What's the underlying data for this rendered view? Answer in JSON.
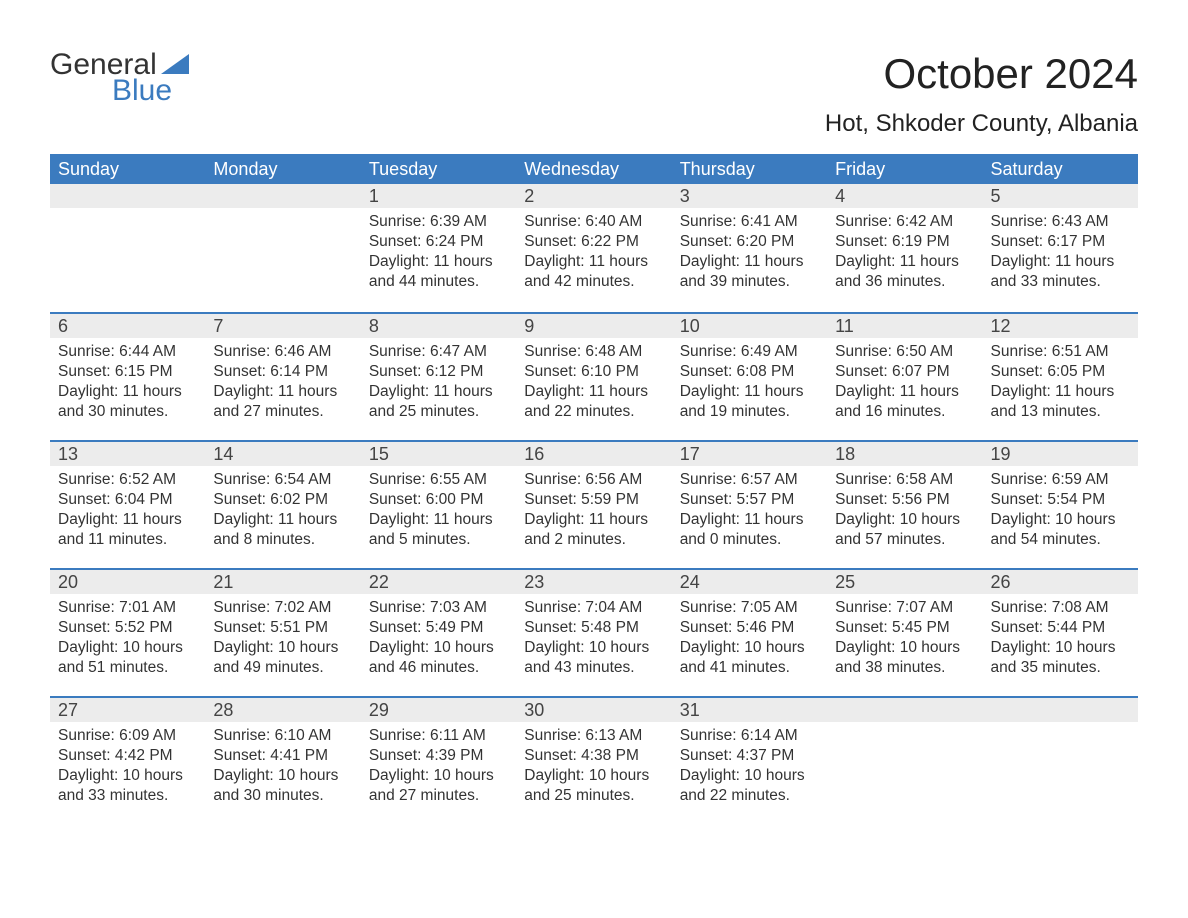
{
  "logo": {
    "word1": "General",
    "word2": "Blue",
    "flag_color": "#3b7bbf"
  },
  "title": "October 2024",
  "location": "Hot, Shkoder County, Albania",
  "colors": {
    "header_bg": "#3b7bbf",
    "header_text": "#ffffff",
    "daynum_bg": "#ececec",
    "row_border": "#3b7bbf",
    "text": "#333333"
  },
  "day_headers": [
    "Sunday",
    "Monday",
    "Tuesday",
    "Wednesday",
    "Thursday",
    "Friday",
    "Saturday"
  ],
  "weeks": [
    [
      null,
      null,
      {
        "n": "1",
        "sunrise": "Sunrise: 6:39 AM",
        "sunset": "Sunset: 6:24 PM",
        "day1": "Daylight: 11 hours",
        "day2": "and 44 minutes."
      },
      {
        "n": "2",
        "sunrise": "Sunrise: 6:40 AM",
        "sunset": "Sunset: 6:22 PM",
        "day1": "Daylight: 11 hours",
        "day2": "and 42 minutes."
      },
      {
        "n": "3",
        "sunrise": "Sunrise: 6:41 AM",
        "sunset": "Sunset: 6:20 PM",
        "day1": "Daylight: 11 hours",
        "day2": "and 39 minutes."
      },
      {
        "n": "4",
        "sunrise": "Sunrise: 6:42 AM",
        "sunset": "Sunset: 6:19 PM",
        "day1": "Daylight: 11 hours",
        "day2": "and 36 minutes."
      },
      {
        "n": "5",
        "sunrise": "Sunrise: 6:43 AM",
        "sunset": "Sunset: 6:17 PM",
        "day1": "Daylight: 11 hours",
        "day2": "and 33 minutes."
      }
    ],
    [
      {
        "n": "6",
        "sunrise": "Sunrise: 6:44 AM",
        "sunset": "Sunset: 6:15 PM",
        "day1": "Daylight: 11 hours",
        "day2": "and 30 minutes."
      },
      {
        "n": "7",
        "sunrise": "Sunrise: 6:46 AM",
        "sunset": "Sunset: 6:14 PM",
        "day1": "Daylight: 11 hours",
        "day2": "and 27 minutes."
      },
      {
        "n": "8",
        "sunrise": "Sunrise: 6:47 AM",
        "sunset": "Sunset: 6:12 PM",
        "day1": "Daylight: 11 hours",
        "day2": "and 25 minutes."
      },
      {
        "n": "9",
        "sunrise": "Sunrise: 6:48 AM",
        "sunset": "Sunset: 6:10 PM",
        "day1": "Daylight: 11 hours",
        "day2": "and 22 minutes."
      },
      {
        "n": "10",
        "sunrise": "Sunrise: 6:49 AM",
        "sunset": "Sunset: 6:08 PM",
        "day1": "Daylight: 11 hours",
        "day2": "and 19 minutes."
      },
      {
        "n": "11",
        "sunrise": "Sunrise: 6:50 AM",
        "sunset": "Sunset: 6:07 PM",
        "day1": "Daylight: 11 hours",
        "day2": "and 16 minutes."
      },
      {
        "n": "12",
        "sunrise": "Sunrise: 6:51 AM",
        "sunset": "Sunset: 6:05 PM",
        "day1": "Daylight: 11 hours",
        "day2": "and 13 minutes."
      }
    ],
    [
      {
        "n": "13",
        "sunrise": "Sunrise: 6:52 AM",
        "sunset": "Sunset: 6:04 PM",
        "day1": "Daylight: 11 hours",
        "day2": "and 11 minutes."
      },
      {
        "n": "14",
        "sunrise": "Sunrise: 6:54 AM",
        "sunset": "Sunset: 6:02 PM",
        "day1": "Daylight: 11 hours",
        "day2": "and 8 minutes."
      },
      {
        "n": "15",
        "sunrise": "Sunrise: 6:55 AM",
        "sunset": "Sunset: 6:00 PM",
        "day1": "Daylight: 11 hours",
        "day2": "and 5 minutes."
      },
      {
        "n": "16",
        "sunrise": "Sunrise: 6:56 AM",
        "sunset": "Sunset: 5:59 PM",
        "day1": "Daylight: 11 hours",
        "day2": "and 2 minutes."
      },
      {
        "n": "17",
        "sunrise": "Sunrise: 6:57 AM",
        "sunset": "Sunset: 5:57 PM",
        "day1": "Daylight: 11 hours",
        "day2": "and 0 minutes."
      },
      {
        "n": "18",
        "sunrise": "Sunrise: 6:58 AM",
        "sunset": "Sunset: 5:56 PM",
        "day1": "Daylight: 10 hours",
        "day2": "and 57 minutes."
      },
      {
        "n": "19",
        "sunrise": "Sunrise: 6:59 AM",
        "sunset": "Sunset: 5:54 PM",
        "day1": "Daylight: 10 hours",
        "day2": "and 54 minutes."
      }
    ],
    [
      {
        "n": "20",
        "sunrise": "Sunrise: 7:01 AM",
        "sunset": "Sunset: 5:52 PM",
        "day1": "Daylight: 10 hours",
        "day2": "and 51 minutes."
      },
      {
        "n": "21",
        "sunrise": "Sunrise: 7:02 AM",
        "sunset": "Sunset: 5:51 PM",
        "day1": "Daylight: 10 hours",
        "day2": "and 49 minutes."
      },
      {
        "n": "22",
        "sunrise": "Sunrise: 7:03 AM",
        "sunset": "Sunset: 5:49 PM",
        "day1": "Daylight: 10 hours",
        "day2": "and 46 minutes."
      },
      {
        "n": "23",
        "sunrise": "Sunrise: 7:04 AM",
        "sunset": "Sunset: 5:48 PM",
        "day1": "Daylight: 10 hours",
        "day2": "and 43 minutes."
      },
      {
        "n": "24",
        "sunrise": "Sunrise: 7:05 AM",
        "sunset": "Sunset: 5:46 PM",
        "day1": "Daylight: 10 hours",
        "day2": "and 41 minutes."
      },
      {
        "n": "25",
        "sunrise": "Sunrise: 7:07 AM",
        "sunset": "Sunset: 5:45 PM",
        "day1": "Daylight: 10 hours",
        "day2": "and 38 minutes."
      },
      {
        "n": "26",
        "sunrise": "Sunrise: 7:08 AM",
        "sunset": "Sunset: 5:44 PM",
        "day1": "Daylight: 10 hours",
        "day2": "and 35 minutes."
      }
    ],
    [
      {
        "n": "27",
        "sunrise": "Sunrise: 6:09 AM",
        "sunset": "Sunset: 4:42 PM",
        "day1": "Daylight: 10 hours",
        "day2": "and 33 minutes."
      },
      {
        "n": "28",
        "sunrise": "Sunrise: 6:10 AM",
        "sunset": "Sunset: 4:41 PM",
        "day1": "Daylight: 10 hours",
        "day2": "and 30 minutes."
      },
      {
        "n": "29",
        "sunrise": "Sunrise: 6:11 AM",
        "sunset": "Sunset: 4:39 PM",
        "day1": "Daylight: 10 hours",
        "day2": "and 27 minutes."
      },
      {
        "n": "30",
        "sunrise": "Sunrise: 6:13 AM",
        "sunset": "Sunset: 4:38 PM",
        "day1": "Daylight: 10 hours",
        "day2": "and 25 minutes."
      },
      {
        "n": "31",
        "sunrise": "Sunrise: 6:14 AM",
        "sunset": "Sunset: 4:37 PM",
        "day1": "Daylight: 10 hours",
        "day2": "and 22 minutes."
      },
      null,
      null
    ]
  ]
}
